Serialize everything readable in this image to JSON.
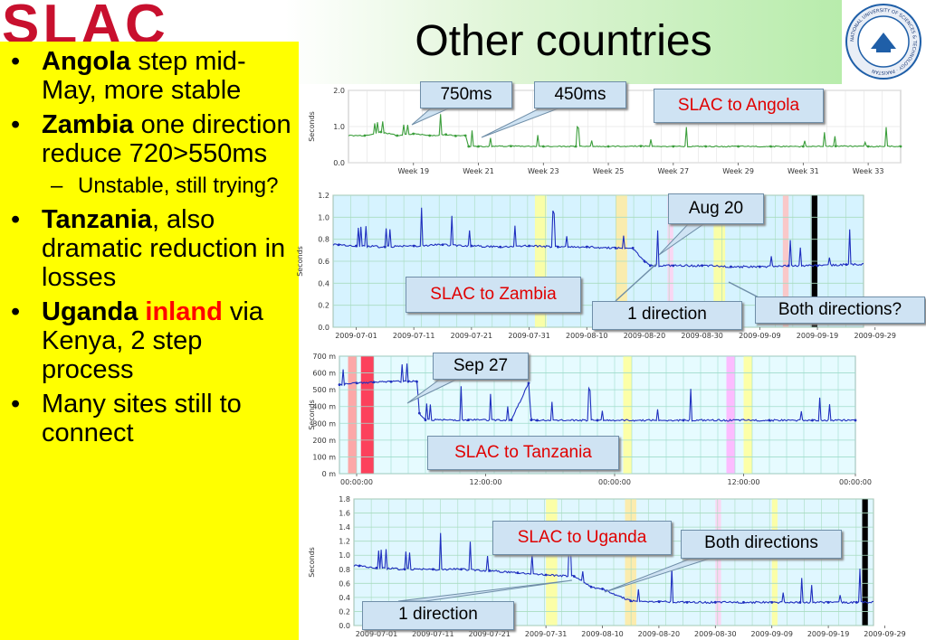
{
  "logo": {
    "text": "SLAC"
  },
  "title": "Other countries",
  "seal": {
    "text": "NATIONAL UNIVERSITY OF SCIENCES & TECHNOLOGY · PAKISTAN"
  },
  "bullets": [
    {
      "bold": "Angola",
      "rest": " step mid-May, more stable"
    },
    {
      "bold": "Zambia",
      "rest": " one direction reduce 720>550ms"
    },
    {
      "sub": "Unstable, still trying?"
    },
    {
      "bold": "Tanzania",
      "rest": ", also dramatic reduction in losses"
    },
    {
      "bold": "Uganda",
      "red": " inland",
      "rest": " via Kenya, 2 step process"
    },
    {
      "plain": "Many sites still to connect"
    }
  ],
  "callouts": {
    "angola_750": "750ms",
    "angola_450": "450ms",
    "angola_label": "SLAC to Angola",
    "zambia_aug": "Aug 20",
    "zambia_label": "SLAC to Zambia",
    "zambia_one": "1 direction",
    "zambia_both": "Both directions?",
    "tanz_sep": "Sep 27",
    "tanz_label": "SLAC to Tanzania",
    "uganda_label": "SLAC to Uganda",
    "uganda_both": "Both directions",
    "uganda_one": "1 direction"
  },
  "chart_data": [
    {
      "type": "line",
      "name": "angola",
      "ylabel": "Seconds",
      "ylim": [
        0,
        2.0
      ],
      "yticks": [
        "0.0",
        "1.0",
        "2.0"
      ],
      "xticks": [
        "Week 19",
        "Week 21",
        "Week 23",
        "Week 25",
        "Week 27",
        "Week 29",
        "Week 31",
        "Week 33"
      ],
      "x": [
        17.5,
        18,
        18.5,
        19,
        19.5,
        20,
        20.3,
        20.6,
        20.7,
        21,
        22,
        23,
        24,
        25,
        26,
        27,
        28,
        29,
        30,
        31,
        32,
        33,
        34
      ],
      "values": [
        0.75,
        0.85,
        0.75,
        0.8,
        0.75,
        0.78,
        0.74,
        0.75,
        0.45,
        0.45,
        0.46,
        0.45,
        0.45,
        0.45,
        0.46,
        0.45,
        0.45,
        0.45,
        0.45,
        0.45,
        0.46,
        0.45,
        0.45
      ],
      "line_color": "#3b9e3b"
    },
    {
      "type": "line",
      "name": "zambia",
      "ylabel": "Seconds",
      "ylim": [
        0,
        1.2
      ],
      "yticks": [
        "0.0",
        "0.2",
        "0.4",
        "0.6",
        "0.8",
        "1.0",
        "1.2"
      ],
      "xticks": [
        "2009-07-01",
        "2009-07-11",
        "2009-07-21",
        "2009-07-31",
        "2009-08-10",
        "2009-08-20",
        "2009-08-30",
        "2009-09-09",
        "2009-09-19",
        "2009-09-29"
      ],
      "x": [
        -3,
        0,
        5,
        10,
        15,
        20,
        25,
        30,
        35,
        40,
        45,
        48,
        50,
        51,
        55,
        60,
        65,
        70,
        75,
        80,
        85
      ],
      "values": [
        0.75,
        0.74,
        0.73,
        0.74,
        0.75,
        0.74,
        0.73,
        0.74,
        0.73,
        0.73,
        0.72,
        0.72,
        0.6,
        0.56,
        0.56,
        0.56,
        0.55,
        0.55,
        0.56,
        0.56,
        0.57
      ],
      "line_color": "#1f2fbf"
    },
    {
      "type": "line",
      "name": "tanzania",
      "ylabel": "Seconds",
      "ylim": [
        0,
        700
      ],
      "yticks": [
        "0",
        "100",
        "200",
        "300",
        "400",
        "500",
        "600",
        "700"
      ],
      "xticks": [
        "00:00:00",
        "12:00:00",
        "00:00:00",
        "12:00:00",
        "00:00:00"
      ],
      "x": [
        0,
        2,
        4,
        6,
        8,
        9,
        9.3,
        10,
        15,
        20,
        22,
        22.3,
        23,
        30,
        40,
        50,
        55,
        60
      ],
      "values": [
        530,
        540,
        545,
        548,
        550,
        548,
        360,
        320,
        320,
        320,
        540,
        320,
        318,
        318,
        318,
        318,
        318,
        318
      ],
      "line_color": "#1f2fbf"
    },
    {
      "type": "line",
      "name": "uganda",
      "ylabel": "Seconds",
      "ylim": [
        0,
        1.8
      ],
      "yticks": [
        "0.0",
        "0.2",
        "0.4",
        "0.6",
        "0.8",
        "1.0",
        "1.2",
        "1.4",
        "1.6",
        "1.8"
      ],
      "xticks": [
        "2009-07-01",
        "2009-07-11",
        "2009-07-21",
        "2009-07-31",
        "2009-08-10",
        "2009-08-20",
        "2009-08-30",
        "2009-09-09",
        "2009-09-19",
        "2009-09-29"
      ],
      "x": [
        -3,
        0,
        5,
        10,
        15,
        20,
        25,
        30,
        35,
        38,
        40,
        45,
        50,
        55,
        60,
        65,
        70,
        75,
        80,
        85
      ],
      "values": [
        0.85,
        0.82,
        0.8,
        0.8,
        0.8,
        0.78,
        0.75,
        0.72,
        0.7,
        0.55,
        0.52,
        0.35,
        0.34,
        0.33,
        0.33,
        0.33,
        0.33,
        0.33,
        0.33,
        0.33
      ],
      "line_color": "#1f2fbf"
    }
  ]
}
